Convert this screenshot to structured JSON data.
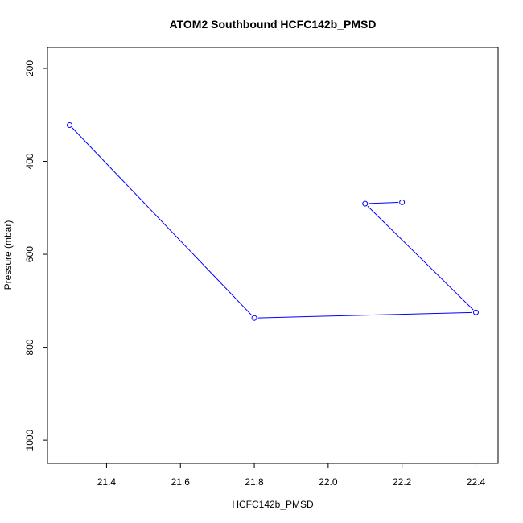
{
  "chart_data": {
    "type": "line",
    "title": "ATOM2 Southbound HCFC142b_PMSD",
    "xlabel": "HCFC142b_PMSD",
    "ylabel": "Pressure (mbar)",
    "xlim": [
      21.24,
      22.46
    ],
    "ylim": [
      1050,
      155
    ],
    "y_axis_reversed": true,
    "x_ticks": [
      "21.4",
      "21.6",
      "21.8",
      "22.0",
      "22.2",
      "22.4"
    ],
    "y_ticks": [
      "200",
      "400",
      "600",
      "800",
      "1000"
    ],
    "series": [
      {
        "color": "#0000ff",
        "marker": "open-circle",
        "x": [
          21.3,
          21.8,
          22.4,
          22.1,
          22.2
        ],
        "y": [
          322,
          737,
          725,
          491,
          488
        ]
      }
    ],
    "grid": false,
    "legend": "none"
  }
}
